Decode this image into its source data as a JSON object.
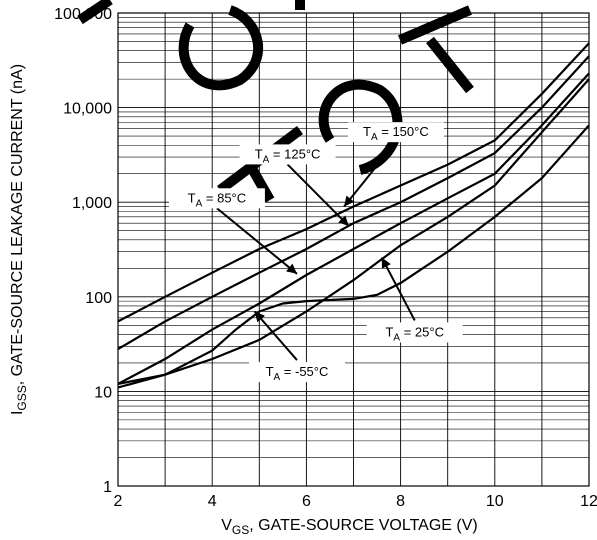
{
  "chart_data": {
    "type": "line",
    "x_scale": "linear",
    "y_scale": "log",
    "xlim": [
      2,
      12
    ],
    "ylim": [
      1,
      100000
    ],
    "x_ticks": [
      2,
      4,
      6,
      8,
      10,
      12
    ],
    "x_tick_labels": [
      "2",
      "4",
      "6",
      "8",
      "10",
      "12"
    ],
    "y_ticks": [
      1,
      10,
      100,
      1000,
      10000,
      100000
    ],
    "y_tick_labels": [
      "1",
      "10",
      "100",
      "1,000",
      "10,000",
      "100,000"
    ],
    "xlabel": "V_GS, GATE-SOURCE VOLTAGE (V)",
    "ylabel": "I_GSS, GATE-SOURCE LEAKAGE CURRENT (nA)",
    "xlabel_parts": {
      "main": "V",
      "sub": "GS",
      "rest": ", GATE-SOURCE VOLTAGE (V)"
    },
    "ylabel_parts": {
      "main": "I",
      "sub": "GSS",
      "rest": ", GATE-SOURCE LEAKAGE CURRENT (nA)"
    },
    "grid": true,
    "series": [
      {
        "name": "T_A = 150°C",
        "label_parts": {
          "main": "T",
          "sub": "A",
          "rest": " = 150°C"
        },
        "x": [
          2,
          3,
          4,
          5,
          6,
          7,
          8,
          9,
          10,
          11,
          12
        ],
        "y": [
          55,
          100,
          180,
          320,
          520,
          900,
          1500,
          2500,
          4500,
          14000,
          48000
        ]
      },
      {
        "name": "T_A = 125°C",
        "label_parts": {
          "main": "T",
          "sub": "A",
          "rest": " = 125°C"
        },
        "x": [
          2,
          3,
          4,
          5,
          6,
          7,
          8,
          9,
          10,
          11,
          12
        ],
        "y": [
          28,
          55,
          100,
          180,
          320,
          600,
          1000,
          1800,
          3300,
          10000,
          35000
        ]
      },
      {
        "name": "T_A = 85°C",
        "label_parts": {
          "main": "T",
          "sub": "A",
          "rest": " = 85°C"
        },
        "x": [
          2,
          3,
          4,
          5,
          6,
          7,
          8,
          9,
          10,
          11,
          12
        ],
        "y": [
          12,
          22,
          45,
          85,
          170,
          320,
          600,
          1100,
          2000,
          6500,
          23000
        ]
      },
      {
        "name": "T_A = 25°C",
        "label_parts": {
          "main": "T",
          "sub": "A",
          "rest": " = 25°C"
        },
        "x": [
          2,
          3,
          4,
          4.5,
          5,
          5.5,
          6,
          7,
          7.5,
          8,
          9,
          10,
          11,
          12
        ],
        "y": [
          12,
          15,
          27,
          45,
          70,
          85,
          90,
          95,
          105,
          140,
          300,
          700,
          1800,
          6500
        ]
      },
      {
        "name": "T_A = -55°C",
        "label_parts": {
          "main": "T",
          "sub": "A",
          "rest": " = -55°C"
        },
        "x": [
          2,
          3,
          4,
          5,
          6,
          7,
          8,
          9,
          10,
          11,
          12
        ],
        "y": [
          11,
          15,
          22,
          35,
          70,
          150,
          350,
          700,
          1500,
          5500,
          20000
        ]
      }
    ],
    "annotations": [
      {
        "series": 0,
        "text_parts": {
          "main": "T",
          "sub": "A",
          "rest": " = 150°C"
        },
        "point": [
          6.8,
          900
        ],
        "label_at": [
          7.9,
          5500
        ]
      },
      {
        "series": 1,
        "text_parts": {
          "main": "T",
          "sub": "A",
          "rest": " = 125°C"
        },
        "point": [
          6.9,
          560
        ],
        "label_at": [
          5.6,
          3200
        ]
      },
      {
        "series": 2,
        "text_parts": {
          "main": "T",
          "sub": "A",
          "rest": " = 85°C"
        },
        "point": [
          5.8,
          175
        ],
        "label_at": [
          4.1,
          1100
        ]
      },
      {
        "series": 3,
        "text_parts": {
          "main": "T",
          "sub": "A",
          "rest": " = 25°C"
        },
        "point": [
          7.6,
          260
        ],
        "label_at": [
          8.3,
          42
        ]
      },
      {
        "series": 4,
        "text_parts": {
          "main": "T",
          "sub": "A",
          "rest": " = -55°C"
        },
        "point": [
          4.9,
          70
        ],
        "label_at": [
          5.8,
          16
        ]
      }
    ],
    "watermark": "NOT FOR"
  }
}
